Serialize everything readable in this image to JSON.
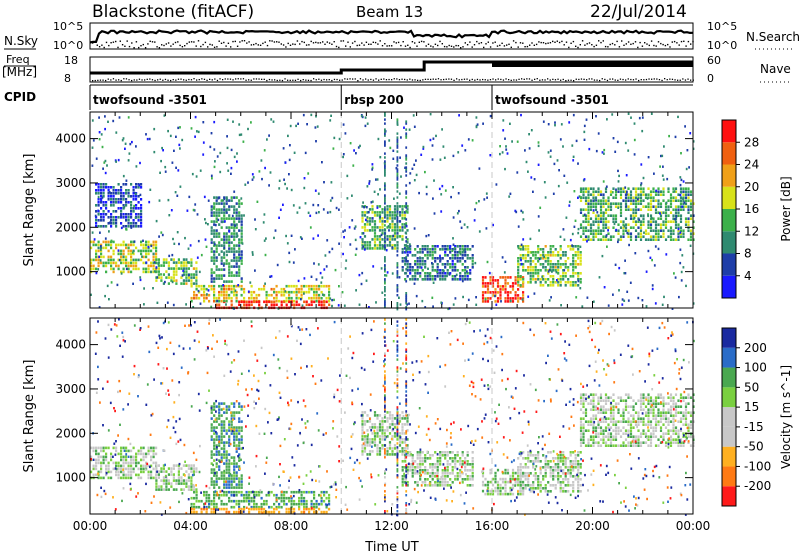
{
  "header": {
    "radar": "Blackstone (fitACF)",
    "beam": "Beam 13",
    "date": "22/Jul/2014"
  },
  "strip_labels": {
    "nsky": "N.Sky",
    "nsearch": "N.Search",
    "freq_line1": "Freq",
    "freq_line2": "[MHz]",
    "nave": "Nave",
    "cpid": "CPID"
  },
  "strip_ticks": {
    "nsky_top": "10^5",
    "nsky_bottom": "10^0",
    "nsearch_top": "10^5",
    "nsearch_bottom": "10^0",
    "freq_top": "18",
    "freq_bottom": "8",
    "nave_top": "60",
    "nave_bottom": "0"
  },
  "cpid_segments": [
    {
      "label": "twofsound -3501",
      "start_hour": 0
    },
    {
      "label": "rbsp 200",
      "start_hour": 10
    },
    {
      "label": "twofsound -3501",
      "start_hour": 16
    }
  ],
  "colors": {
    "power": [
      "#1a1aff",
      "#1e3ea8",
      "#2f8a70",
      "#3cb04a",
      "#d8e21a",
      "#f0a018",
      "#f06010",
      "#ff1010"
    ],
    "velocity": [
      "#ff1a1a",
      "#ff7a14",
      "#ffb020",
      "#c8c8c8",
      "#c8c8c8",
      "#7ad040",
      "#4aa850",
      "#2a6cc8",
      "#1a2aa0"
    ]
  },
  "chart_data": [
    {
      "type": "heatmap",
      "panel": "power",
      "xlabel": "",
      "ylabel": "Slant Range [km]",
      "xlim": [
        0,
        24
      ],
      "ylim": [
        180,
        4600
      ],
      "yticks": [
        "1000",
        "2000",
        "3000",
        "4000"
      ],
      "xticks": [],
      "colorbar": {
        "label": "Power [dB]",
        "ticks": [
          "4",
          "8",
          "12",
          "16",
          "20",
          "24",
          "28"
        ],
        "range": [
          0,
          30
        ]
      },
      "bands": [
        {
          "hours": [
            0.0,
            2.6
          ],
          "range_km": [
            1000,
            1700
          ],
          "value": 16
        },
        {
          "hours": [
            2.6,
            4.2
          ],
          "range_km": [
            700,
            1300
          ],
          "value": 14
        },
        {
          "hours": [
            4.0,
            9.5
          ],
          "range_km": [
            300,
            700
          ],
          "value": 18
        },
        {
          "hours": [
            5.0,
            9.5
          ],
          "range_km": [
            200,
            350
          ],
          "value": 28
        },
        {
          "hours": [
            4.8,
            6.0
          ],
          "range_km": [
            800,
            2700
          ],
          "value": 10
        },
        {
          "hours": [
            10.8,
            12.6
          ],
          "range_km": [
            1500,
            2500
          ],
          "value": 12
        },
        {
          "hours": [
            12.4,
            15.2
          ],
          "range_km": [
            800,
            1600
          ],
          "value": 8
        },
        {
          "hours": [
            15.6,
            17.2
          ],
          "range_km": [
            300,
            900
          ],
          "value": 26
        },
        {
          "hours": [
            17.0,
            19.5
          ],
          "range_km": [
            700,
            1600
          ],
          "value": 14
        },
        {
          "hours": [
            19.5,
            24.0
          ],
          "range_km": [
            1700,
            2900
          ],
          "value": 12
        },
        {
          "hours": [
            0.2,
            2.0
          ],
          "range_km": [
            2000,
            3000
          ],
          "value": 6
        }
      ]
    },
    {
      "type": "heatmap",
      "panel": "velocity",
      "xlabel": "Time UT",
      "ylabel": "Slant Range [km]",
      "xlim": [
        0,
        24
      ],
      "ylim": [
        180,
        4600
      ],
      "yticks": [
        "1000",
        "2000",
        "3000",
        "4000"
      ],
      "xticks": [
        "00:00",
        "04:00",
        "08:00",
        "12:00",
        "16:00",
        "20:00",
        "00:00"
      ],
      "colorbar": {
        "label": "Velocity [m s^-1]",
        "ticks": [
          "-200",
          "-100",
          "-50",
          "-15",
          "15",
          "50",
          "100",
          "200"
        ],
        "range": [
          -250,
          250
        ]
      },
      "bands": [
        {
          "hours": [
            0.0,
            2.6
          ],
          "range_km": [
            1000,
            1700
          ],
          "value": 0
        },
        {
          "hours": [
            2.6,
            4.2
          ],
          "range_km": [
            700,
            1300
          ],
          "value": 0
        },
        {
          "hours": [
            4.0,
            9.5
          ],
          "range_km": [
            300,
            700
          ],
          "value": 30
        },
        {
          "hours": [
            4.0,
            9.5
          ],
          "range_km": [
            200,
            320
          ],
          "value": -80
        },
        {
          "hours": [
            4.8,
            6.0
          ],
          "range_km": [
            800,
            2700
          ],
          "value": 40
        },
        {
          "hours": [
            10.8,
            12.6
          ],
          "range_km": [
            1500,
            2500
          ],
          "value": 0
        },
        {
          "hours": [
            12.4,
            15.2
          ],
          "range_km": [
            800,
            1600
          ],
          "value": 0
        },
        {
          "hours": [
            15.6,
            17.2
          ],
          "range_km": [
            600,
            1200
          ],
          "value": 0
        },
        {
          "hours": [
            17.0,
            19.5
          ],
          "range_km": [
            700,
            1600
          ],
          "value": 0
        },
        {
          "hours": [
            19.5,
            24.0
          ],
          "range_km": [
            1700,
            2900
          ],
          "value": 0
        }
      ]
    }
  ]
}
